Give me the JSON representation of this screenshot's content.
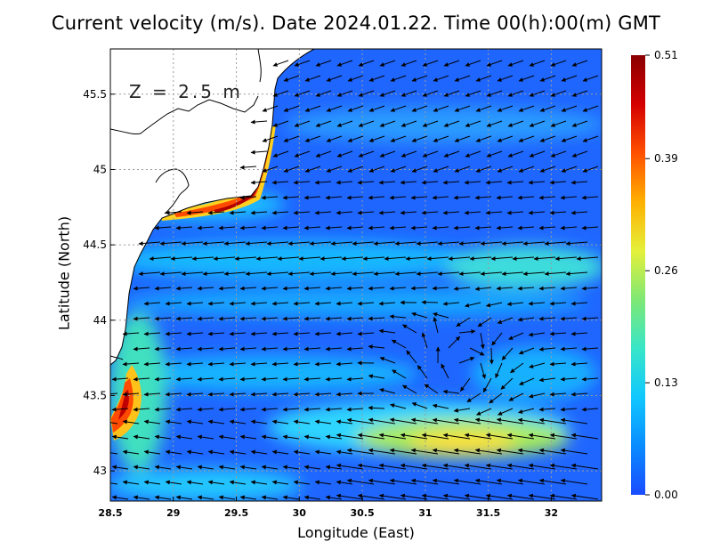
{
  "title": "Current velocity (m/s). Date 2024.01.22. Time 00(h):00(m) GMT",
  "chart_data": {
    "type": "heatmap",
    "title": "Current velocity (m/s). Date 2024.01.22. Time 00(h):00(m) GMT",
    "xlabel": "Longitude (East)",
    "ylabel": "Latitude (North)",
    "xlim": [
      28.5,
      32.4
    ],
    "ylim": [
      42.8,
      45.8
    ],
    "x_ticks": [
      "28.5",
      "29",
      "29.5",
      "30",
      "30.5",
      "31",
      "31.5",
      "32"
    ],
    "y_ticks": [
      "43",
      "43.5",
      "44",
      "44.5",
      "45",
      "45.5"
    ],
    "depth_label": "Z = 2.5 m",
    "colorbar": {
      "min": 0.0,
      "max": 0.51,
      "ticks": [
        "0.00",
        "0.13",
        "0.26",
        "0.39",
        "0.51"
      ],
      "colors": [
        "#1a4cff",
        "#0a8cff",
        "#11c8ff",
        "#38e6c8",
        "#7fe874",
        "#e5f03a",
        "#ffb000",
        "#ff5000",
        "#d40000",
        "#8a0000"
      ]
    },
    "grid": true,
    "colorbar_position": "right"
  }
}
